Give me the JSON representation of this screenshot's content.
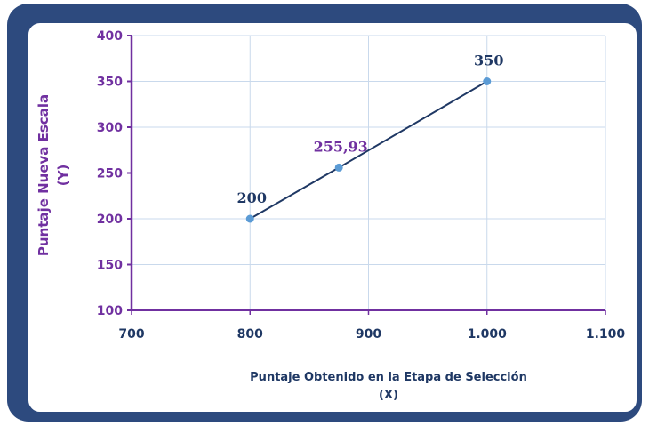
{
  "chart_data": {
    "type": "line",
    "title": "",
    "xlabel": "Puntaje Obtenido en la Etapa de Selección",
    "xlabel_sub": "(X)",
    "ylabel": "Puntaje Nueva Escala",
    "ylabel_sub": "(Y)",
    "xlim": [
      700,
      1100
    ],
    "ylim": [
      100,
      400
    ],
    "x_ticks": [
      700,
      800,
      900,
      1000,
      1100
    ],
    "x_tick_labels": [
      "700",
      "800",
      "900",
      "1.000",
      "1.100"
    ],
    "y_ticks": [
      100,
      150,
      200,
      250,
      300,
      350,
      400
    ],
    "y_tick_labels": [
      "100",
      "150",
      "200",
      "250",
      "300",
      "350",
      "400"
    ],
    "grid": true,
    "series": [
      {
        "x": [
          800,
          875,
          1000
        ],
        "y": [
          200,
          255.93,
          350
        ],
        "labels": [
          "200",
          "255,93",
          "350"
        ],
        "label_colors": [
          "#1f3864",
          "#7030a0",
          "#1f3864"
        ],
        "line_color": "#1f3864",
        "marker_color": "#5b9bd5"
      }
    ],
    "colors": {
      "frame": "#2d4a7e",
      "grid": "#c9d9ec",
      "axis": "#7030a0",
      "x_tick_text": "#1f3864",
      "y_tick_text": "#7030a0"
    }
  }
}
